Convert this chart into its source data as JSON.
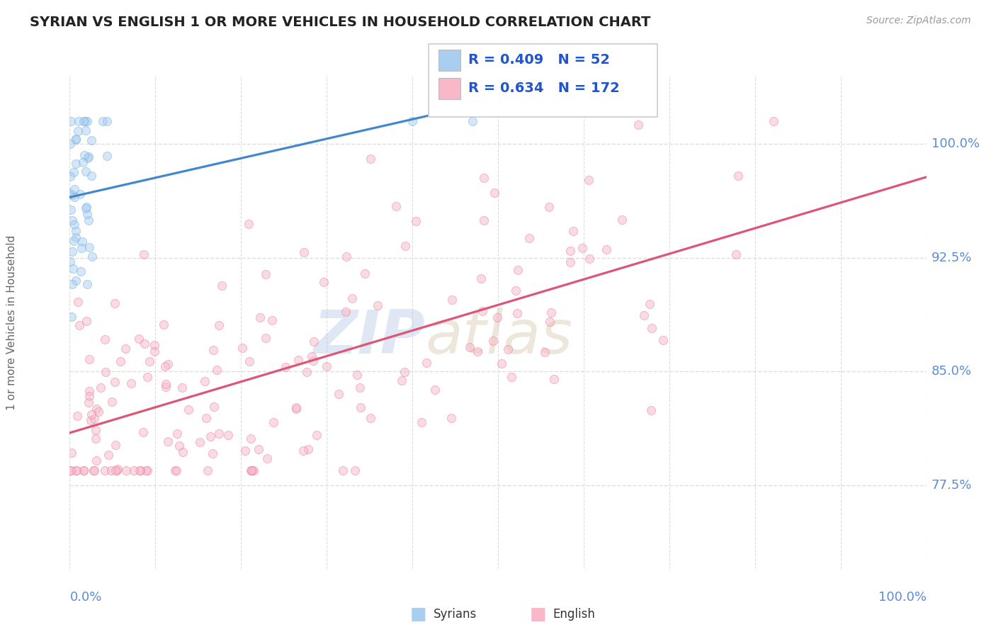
{
  "title": "SYRIAN VS ENGLISH 1 OR MORE VEHICLES IN HOUSEHOLD CORRELATION CHART",
  "source": "Source: ZipAtlas.com",
  "ylabel": "1 or more Vehicles in Household",
  "yticks": [
    77.5,
    85.0,
    92.5,
    100.0
  ],
  "xrange": [
    0.0,
    1.0
  ],
  "yrange": [
    72.0,
    104.5
  ],
  "legend_entries": [
    {
      "label": "Syrians",
      "color": "#aacef0",
      "edge_color": "#6aaee0",
      "R": 0.409,
      "N": 52
    },
    {
      "label": "English",
      "color": "#f8b8c8",
      "edge_color": "#e87898",
      "R": 0.634,
      "N": 172
    }
  ],
  "watermark_zip": "ZIP",
  "watermark_atlas": "atlas",
  "background_color": "#ffffff",
  "syrians_line_color": "#4488cc",
  "english_line_color": "#dd5577",
  "dot_alpha": 0.5,
  "dot_size": 75,
  "grid_color": "#dddddd",
  "title_color": "#222222",
  "axis_label_color": "#5b8dd4",
  "legend_text_color": "#2255cc"
}
